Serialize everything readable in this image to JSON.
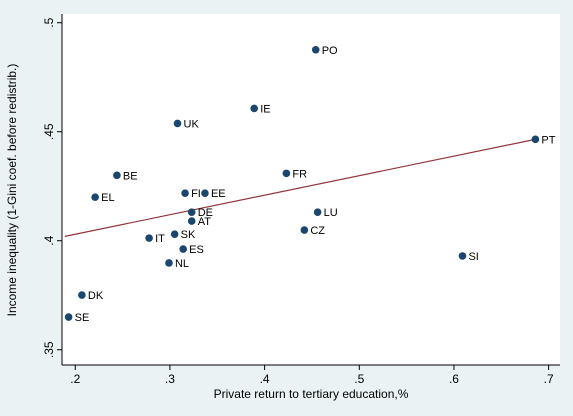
{
  "chart_data": {
    "type": "scatter",
    "x_label": "Private return to tertiary education,%",
    "y_label": "Income inequality (1-Gini coef. before redistrib.)",
    "points": {
      "labels": [
        "PO",
        "IE",
        "UK",
        "PT",
        "FR",
        "BE",
        "EL",
        "FI",
        "EE",
        "DE",
        "AT",
        "LU",
        "CZ",
        "IT",
        "SK",
        "ES",
        "NL",
        "SI",
        "DK",
        "SE"
      ],
      "x": [
        0.454,
        0.389,
        0.308,
        0.686,
        0.423,
        0.244,
        0.221,
        0.316,
        0.337,
        0.323,
        0.323,
        0.456,
        0.442,
        0.278,
        0.305,
        0.314,
        0.299,
        0.609,
        0.207,
        0.193
      ],
      "y": [
        0.4876,
        0.4607,
        0.4538,
        0.4465,
        0.4309,
        0.43,
        0.42,
        0.4218,
        0.4218,
        0.4131,
        0.409,
        0.4131,
        0.4049,
        0.4012,
        0.403,
        0.3962,
        0.3898,
        0.393,
        0.3751,
        0.365
      ],
      "color": "#1a476f"
    },
    "fit": {
      "x": [
        0.189,
        0.686
      ],
      "y": [
        0.402,
        0.4465
      ],
      "color": "#90353b"
    },
    "xlim": [
      0.186,
      0.712
    ],
    "ylim": [
      0.343,
      0.504
    ],
    "xticks": [
      {
        "value": 0.2,
        "label": ".2"
      },
      {
        "value": 0.3,
        "label": ".3"
      },
      {
        "value": 0.4,
        "label": ".4"
      },
      {
        "value": 0.5,
        "label": ".5"
      },
      {
        "value": 0.6,
        "label": ".6"
      },
      {
        "value": 0.7,
        "label": ".7"
      }
    ],
    "yticks": [
      {
        "value": 0.35,
        "label": ".35"
      },
      {
        "value": 0.4,
        "label": ".4"
      },
      {
        "value": 0.45,
        "label": ".45"
      },
      {
        "value": 0.5,
        "label": ".5"
      }
    ],
    "grid": false
  }
}
